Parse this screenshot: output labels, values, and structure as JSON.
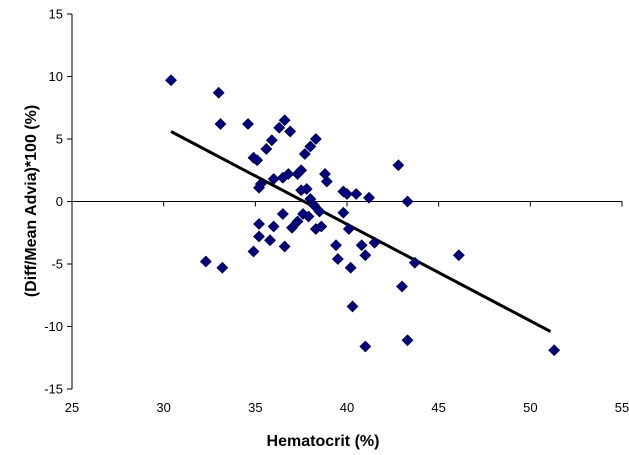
{
  "chart_data": {
    "type": "scatter",
    "title": "",
    "xlabel": "Hematocrit (%)",
    "ylabel": "(Diff/Mean Advia)*100 (%)",
    "xlim": [
      25,
      55
    ],
    "ylim": [
      -15,
      15
    ],
    "xticks": [
      25,
      30,
      35,
      40,
      45,
      50,
      55
    ],
    "yticks": [
      15,
      10,
      5,
      0,
      -5,
      -10,
      -15
    ],
    "grid": false,
    "legend": "none",
    "marker": "diamond",
    "colors": {
      "marker": "#000080",
      "trendline": "#000000",
      "axis": "#000000"
    },
    "series": [
      {
        "points": [
          [
            30.4,
            9.7
          ],
          [
            33.0,
            8.7
          ],
          [
            33.1,
            6.2
          ],
          [
            34.6,
            6.2
          ],
          [
            36.6,
            6.5
          ],
          [
            36.3,
            5.9
          ],
          [
            36.9,
            5.6
          ],
          [
            35.9,
            4.9
          ],
          [
            35.6,
            4.2
          ],
          [
            34.9,
            3.5
          ],
          [
            35.1,
            3.3
          ],
          [
            35.3,
            1.4
          ],
          [
            35.2,
            1.1
          ],
          [
            36.0,
            1.8
          ],
          [
            36.5,
            1.9
          ],
          [
            36.8,
            2.2
          ],
          [
            37.3,
            2.2
          ],
          [
            37.5,
            2.5
          ],
          [
            37.7,
            3.8
          ],
          [
            38.0,
            4.4
          ],
          [
            38.3,
            5.0
          ],
          [
            38.8,
            2.2
          ],
          [
            38.9,
            1.6
          ],
          [
            37.8,
            1.0
          ],
          [
            37.5,
            0.9
          ],
          [
            38.0,
            0.2
          ],
          [
            38.2,
            -0.3
          ],
          [
            38.5,
            -0.8
          ],
          [
            37.6,
            -1.0
          ],
          [
            37.9,
            -1.2
          ],
          [
            37.3,
            -1.6
          ],
          [
            37.0,
            -2.1
          ],
          [
            38.3,
            -2.2
          ],
          [
            38.6,
            -2.0
          ],
          [
            36.5,
            -1.0
          ],
          [
            36.0,
            -2.0
          ],
          [
            35.8,
            -3.1
          ],
          [
            35.2,
            -1.8
          ],
          [
            35.2,
            -2.8
          ],
          [
            34.9,
            -4.0
          ],
          [
            36.6,
            -3.6
          ],
          [
            32.3,
            -4.8
          ],
          [
            33.2,
            -5.3
          ],
          [
            39.8,
            0.8
          ],
          [
            40.0,
            0.6
          ],
          [
            40.5,
            0.6
          ],
          [
            39.8,
            -0.9
          ],
          [
            40.1,
            -2.2
          ],
          [
            39.4,
            -3.5
          ],
          [
            39.5,
            -4.6
          ],
          [
            40.2,
            -5.3
          ],
          [
            40.8,
            -3.5
          ],
          [
            41.0,
            -4.3
          ],
          [
            41.5,
            -3.3
          ],
          [
            41.2,
            0.3
          ],
          [
            42.8,
            2.9
          ],
          [
            43.3,
            0.0
          ],
          [
            43.7,
            -4.9
          ],
          [
            43.0,
            -6.8
          ],
          [
            40.3,
            -8.4
          ],
          [
            41.0,
            -11.6
          ],
          [
            43.3,
            -11.1
          ],
          [
            46.1,
            -4.3
          ],
          [
            51.3,
            -11.9
          ]
        ]
      }
    ],
    "trendline": {
      "x": [
        30.4,
        51.1
      ],
      "y": [
        5.6,
        -10.4
      ]
    }
  }
}
